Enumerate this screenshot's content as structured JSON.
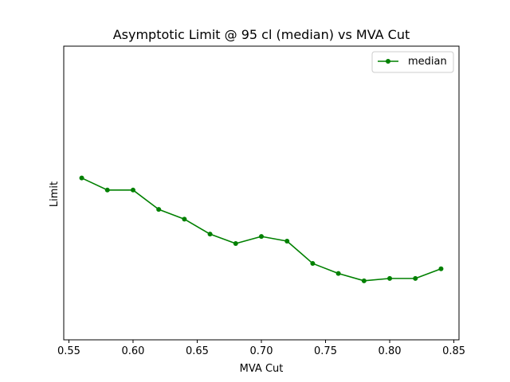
{
  "chart_data": {
    "type": "line",
    "title": "Asymptotic Limit @ 95 cl (median) vs MVA Cut",
    "xlabel": "MVA Cut",
    "ylabel": "Limit",
    "xlim": [
      0.546,
      0.854
    ],
    "ylim": [
      0,
      1
    ],
    "x_ticks": [
      "0.55",
      "0.60",
      "0.65",
      "0.70",
      "0.75",
      "0.80",
      "0.85"
    ],
    "y_ticks": [],
    "grid": false,
    "legend_position": "upper right",
    "series": [
      {
        "name": "median",
        "color": "#008000",
        "marker": "circle",
        "x": [
          0.56,
          0.58,
          0.6,
          0.62,
          0.64,
          0.66,
          0.68,
          0.7,
          0.72,
          0.74,
          0.76,
          0.78,
          0.8,
          0.82,
          0.84
        ],
        "y": [
          0.551,
          0.51,
          0.51,
          0.444,
          0.411,
          0.36,
          0.328,
          0.352,
          0.336,
          0.26,
          0.226,
          0.201,
          0.209,
          0.209,
          0.242
        ]
      }
    ]
  }
}
